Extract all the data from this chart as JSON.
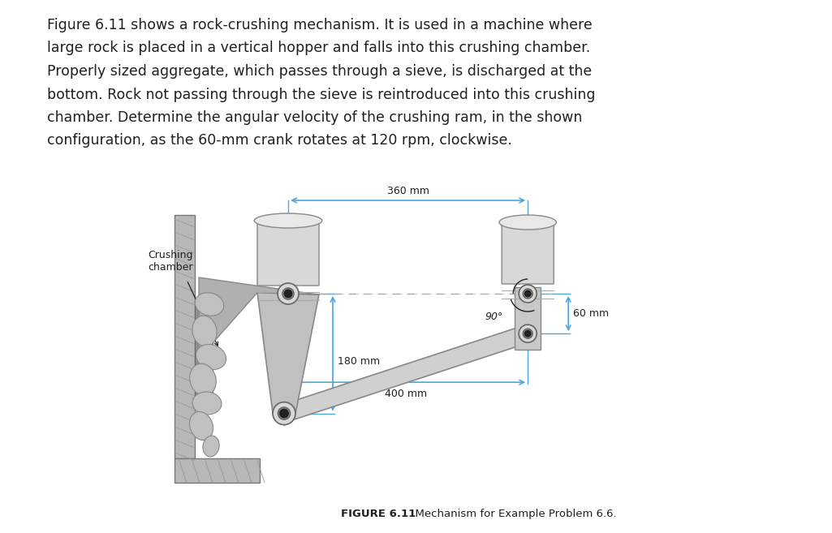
{
  "text_paragraph": "Figure 6.11 shows a rock-crushing mechanism. It is used in a machine where\nlarge rock is placed in a vertical hopper and falls into this crushing chamber.\nProperly sized aggregate, which passes through a sieve, is discharged at the\nbottom. Rock not passing through the sieve is reintroduced into this crushing\nchamber. Determine the angular velocity of the crushing ram, in the shown\nconfiguration, as the 60-mm crank rotates at 120 rpm, clockwise.",
  "figure_caption_bold": "FIGURE 6.11",
  "figure_caption_rest": "  Mechanism for Example Problem 6.6.",
  "dim_360": "360 mm",
  "dim_60": "60 mm",
  "dim_180": "180 mm",
  "dim_400": "400 mm",
  "angle_label": "90°",
  "crushing_chamber_label": "Crushing\nchamber",
  "bg_color": "#ffffff",
  "text_color": "#231f20",
  "dim_color": "#4ea6dc",
  "caption_color": "#231f20"
}
